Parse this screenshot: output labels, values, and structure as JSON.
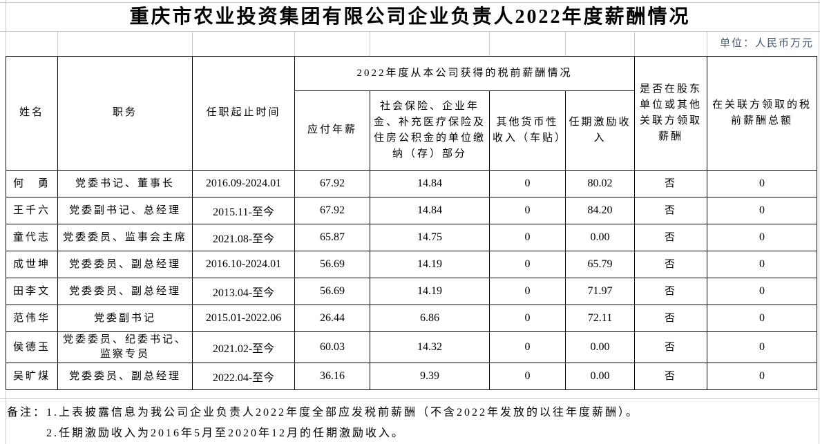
{
  "title": "重庆市农业投资集团有限公司企业负责人2022年度薪酬情况",
  "unit_note": "单位：人民币万元",
  "colors": {
    "unit_note_text": "#44546A",
    "table_border": "#000000",
    "gridline": "#C9C9C9"
  },
  "table": {
    "header": {
      "name": "姓名",
      "position": "职务",
      "tenure": "任职起止时间",
      "pretax_group": "2022年度从本公司获得的税前薪酬情况",
      "payable_salary": "应付年薪",
      "insurance": "社会保险、企业年金、补充医疗保险及住房公积金的单位缴纳（存）部分",
      "other_monetary": "其他货币性收入（车贴）",
      "tenure_incentive": "任期激励收入",
      "shareholder_pay": "是否在股东单位或其他关联方领取薪酬",
      "related_total": "在关联方领取的税前薪酬总额"
    },
    "rows": [
      {
        "name": "何　勇",
        "position": "党委书记、董事长",
        "tenure": "2016.09-2024.01",
        "salary": "67.92",
        "insurance": "14.84",
        "other": "0",
        "incentive": "80.02",
        "in_related": "否",
        "related_total": "0"
      },
      {
        "name": "王千六",
        "position": "党委副书记、总经理",
        "tenure": "2015.11-至今",
        "salary": "67.92",
        "insurance": "14.84",
        "other": "0",
        "incentive": "84.20",
        "in_related": "否",
        "related_total": "0"
      },
      {
        "name": "童代志",
        "position": "党委委员、监事会主席",
        "tenure": "2021.08-至今",
        "salary": "65.87",
        "insurance": "14.75",
        "other": "0",
        "incentive": "0.00",
        "in_related": "否",
        "related_total": "0"
      },
      {
        "name": "成世坤",
        "position": "党委委员、副总经理",
        "tenure": "2016.10-2024.01",
        "salary": "56.69",
        "insurance": "14.19",
        "other": "0",
        "incentive": "65.79",
        "in_related": "否",
        "related_total": "0"
      },
      {
        "name": "田李文",
        "position": "党委委员、副总经理",
        "tenure": "2013.04-至今",
        "salary": "56.69",
        "insurance": "14.19",
        "other": "0",
        "incentive": "71.97",
        "in_related": "否",
        "related_total": "0"
      },
      {
        "name": "范伟华",
        "position": "党委副书记",
        "tenure": "2015.01-2022.06",
        "salary": "26.44",
        "insurance": "6.86",
        "other": "0",
        "incentive": "72.11",
        "in_related": "否",
        "related_total": "0"
      },
      {
        "name": "侯德玉",
        "position": "党委委员、纪委书记、监察专员",
        "tenure": "2021.02-至今",
        "salary": "60.03",
        "insurance": "14.32",
        "other": "0",
        "incentive": "0.00",
        "in_related": "否",
        "related_total": "0"
      },
      {
        "name": "吴旷煤",
        "position": "党委委员、副总经理",
        "tenure": "2022.04-至今",
        "salary": "36.16",
        "insurance": "9.39",
        "other": "0",
        "incentive": "0.00",
        "in_related": "否",
        "related_total": "0"
      }
    ]
  },
  "notes": {
    "label": "备注：",
    "items": [
      "1.上表披露信息为我公司企业负责人2022年度全部应发税前薪酬（不含2022年发放的以往年度薪酬）。",
      "2.任期激励收入为2016年5月至2020年12月的任期激励收入。"
    ]
  }
}
